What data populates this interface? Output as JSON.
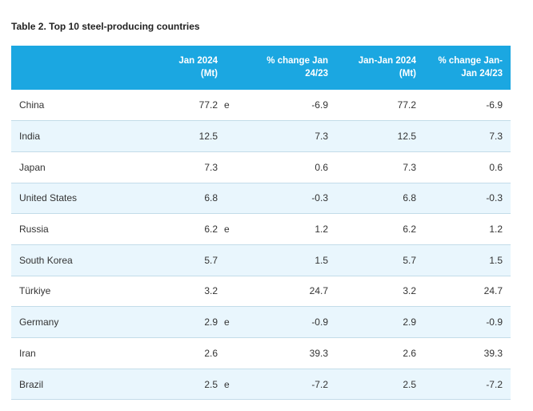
{
  "caption": "Table 2. Top 10 steel-producing countries",
  "headers": {
    "country": "",
    "jan_line1": "Jan 2024",
    "jan_line2": "(Mt)",
    "pct_jan_line1": "% change Jan",
    "pct_jan_line2": "24/23",
    "ytd_line1": "Jan-Jan 2024",
    "ytd_line2": "(Mt)",
    "pct_ytd_line1": "% change Jan-",
    "pct_ytd_line2": "Jan 24/23"
  },
  "rows": [
    {
      "country": "China",
      "jan": "77.2",
      "flag": "e",
      "pct_jan": "-6.9",
      "ytd": "77.2",
      "pct_ytd": "-6.9"
    },
    {
      "country": "India",
      "jan": "12.5",
      "flag": "",
      "pct_jan": "7.3",
      "ytd": "12.5",
      "pct_ytd": "7.3"
    },
    {
      "country": "Japan",
      "jan": "7.3",
      "flag": "",
      "pct_jan": "0.6",
      "ytd": "7.3",
      "pct_ytd": "0.6"
    },
    {
      "country": "United States",
      "jan": "6.8",
      "flag": "",
      "pct_jan": "-0.3",
      "ytd": "6.8",
      "pct_ytd": "-0.3"
    },
    {
      "country": "Russia",
      "jan": "6.2",
      "flag": "e",
      "pct_jan": "1.2",
      "ytd": "6.2",
      "pct_ytd": "1.2"
    },
    {
      "country": "South Korea",
      "jan": "5.7",
      "flag": "",
      "pct_jan": "1.5",
      "ytd": "5.7",
      "pct_ytd": "1.5"
    },
    {
      "country": "Türkiye",
      "jan": "3.2",
      "flag": "",
      "pct_jan": "24.7",
      "ytd": "3.2",
      "pct_ytd": "24.7"
    },
    {
      "country": "Germany",
      "jan": "2.9",
      "flag": "e",
      "pct_jan": "-0.9",
      "ytd": "2.9",
      "pct_ytd": "-0.9"
    },
    {
      "country": "Iran",
      "jan": "2.6",
      "flag": "",
      "pct_jan": "39.3",
      "ytd": "2.6",
      "pct_ytd": "39.3"
    },
    {
      "country": "Brazil",
      "jan": "2.5",
      "flag": "e",
      "pct_jan": "-7.2",
      "ytd": "2.5",
      "pct_ytd": "-7.2"
    }
  ],
  "colors": {
    "header_bg": "#1ba7e1",
    "stripe_bg": "#e9f6fd",
    "border": "#c3dce9"
  }
}
